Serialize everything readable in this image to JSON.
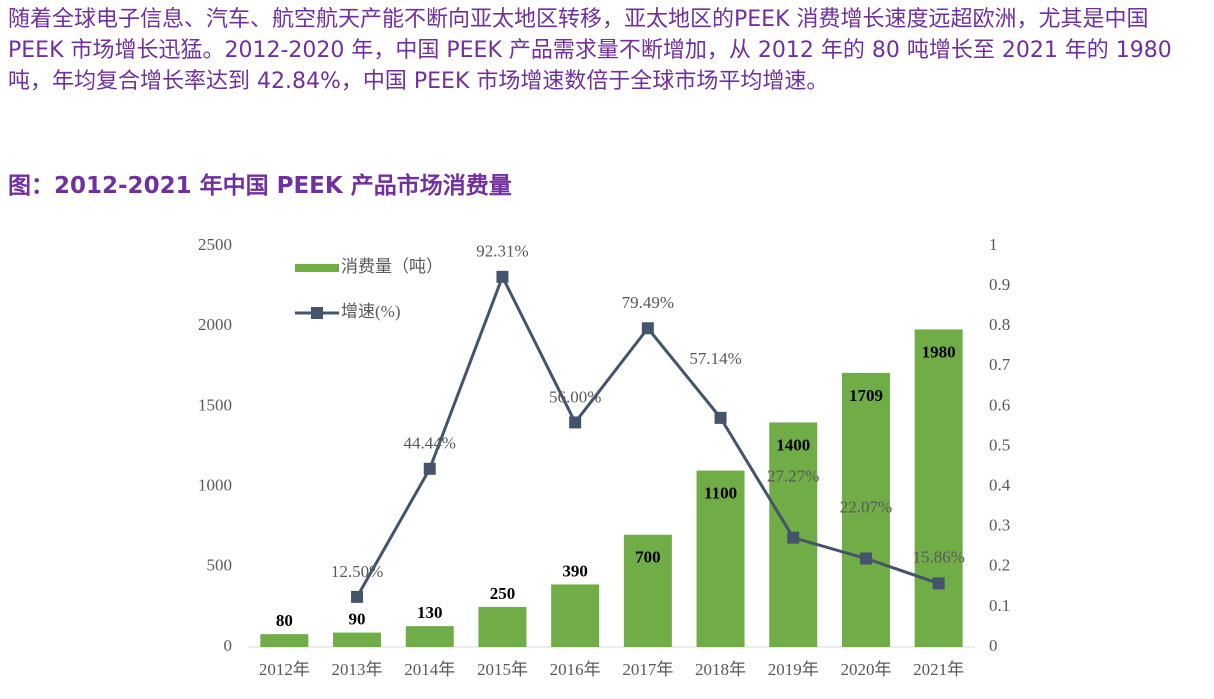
{
  "body": {
    "paragraph": "随着全球电子信息、汽车、航空航天产能不断向亚太地区转移，亚太地区的PEEK 消费增长速度远超欧洲，尤其是中国 PEEK 市场增长迅猛。2012-2020 年，中国 PEEK 产品需求量不断增加，从 2012 年的 80 吨增长至 2021 年的 1980 吨，年均复合增长率达到 42.84%，中国 PEEK 市场增速数倍于全球市场平均增速。",
    "figure_title": "图：2012-2021 年中国 PEEK 产品市场消费量"
  },
  "chart_data": {
    "type": "bar_line",
    "categories": [
      "2012年",
      "2013年",
      "2014年",
      "2015年",
      "2016年",
      "2017年",
      "2018年",
      "2019年",
      "2020年",
      "2021年"
    ],
    "series": [
      {
        "name": "消费量（吨）",
        "type": "bar",
        "color": "#70ad47",
        "values": [
          80,
          90,
          130,
          250,
          390,
          700,
          1100,
          1400,
          1709,
          1980
        ]
      },
      {
        "name": "增速(%)",
        "type": "line",
        "axis": "y2",
        "color": "#44546a",
        "values": [
          null,
          0.125,
          0.4444,
          0.9231,
          0.56,
          0.7949,
          0.5714,
          0.2727,
          0.2207,
          0.1586
        ],
        "value_labels": [
          null,
          "12.50%",
          "44.44%",
          "92.31%",
          "56.00%",
          "79.49%",
          "57.14%",
          "27.27%",
          "22.07%",
          "15.86%"
        ]
      }
    ],
    "ylim": [
      0,
      2500
    ],
    "yticks": [
      0,
      500,
      1000,
      1500,
      2000,
      2500
    ],
    "y2lim": [
      0,
      1
    ],
    "y2ticks": [
      0,
      0.1,
      0.2,
      0.3,
      0.4,
      0.5,
      0.6,
      0.7,
      0.8,
      0.9,
      1
    ],
    "grid": false,
    "legend": "top-left"
  }
}
